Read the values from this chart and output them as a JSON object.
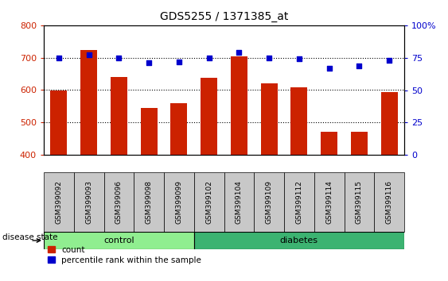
{
  "title": "GDS5255 / 1371385_at",
  "samples": [
    "GSM399092",
    "GSM399093",
    "GSM399096",
    "GSM399098",
    "GSM399099",
    "GSM399102",
    "GSM399104",
    "GSM399109",
    "GSM399112",
    "GSM399114",
    "GSM399115",
    "GSM399116"
  ],
  "counts": [
    600,
    725,
    640,
    545,
    560,
    638,
    705,
    622,
    608,
    472,
    472,
    595
  ],
  "percentiles": [
    75,
    77,
    75,
    71,
    72,
    75,
    79,
    75,
    74,
    67,
    69,
    73
  ],
  "groups": [
    "control",
    "control",
    "control",
    "control",
    "control",
    "diabetes",
    "diabetes",
    "diabetes",
    "diabetes",
    "diabetes",
    "diabetes",
    "diabetes"
  ],
  "control_color": "#90EE90",
  "diabetes_color": "#3CB371",
  "bar_color": "#CC2200",
  "percentile_color": "#0000CC",
  "ticklabel_bg": "#C8C8C8",
  "ylim_left": [
    400,
    800
  ],
  "ylim_right": [
    0,
    100
  ],
  "yticks_left": [
    400,
    500,
    600,
    700,
    800
  ],
  "yticks_right": [
    0,
    25,
    50,
    75,
    100
  ],
  "grid_values": [
    500,
    600,
    700
  ],
  "legend_count_label": "count",
  "legend_pct_label": "percentile rank within the sample",
  "group_label": "disease state",
  "figsize": [
    5.63,
    3.54
  ],
  "dpi": 100
}
